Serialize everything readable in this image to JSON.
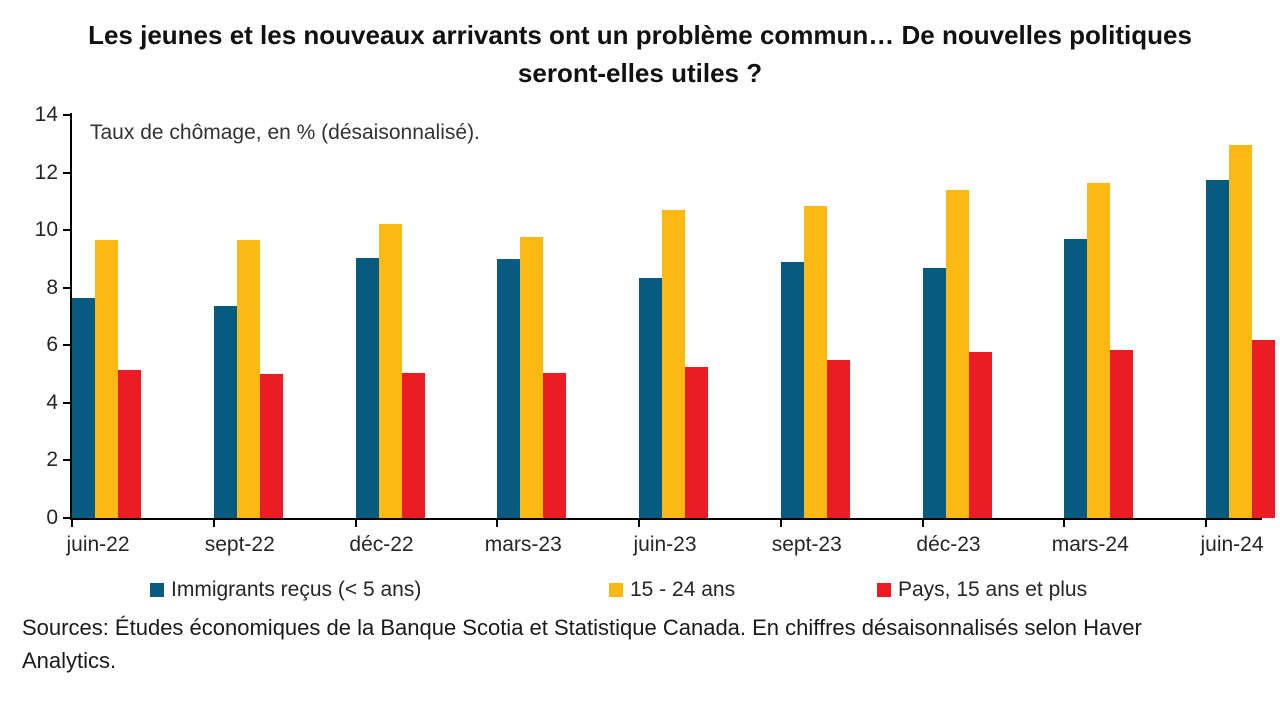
{
  "title": "Les jeunes et les nouveaux arrivants ont un problème commun… De nouvelles politiques seront-elles utiles ?",
  "annotation": "Taux de chômage, en % (désaisonnalisé).",
  "source_note": "Sources: Études économiques de la Banque Scotia et Statistique Canada. En chiffres désaisonnalisés selon Haver Analytics.",
  "colors": {
    "immigrants": "#075A80",
    "youth": "#FCB813",
    "country": "#EC1C24",
    "axis": "#000000"
  },
  "chart_data": {
    "type": "bar",
    "title": "Les jeunes et les nouveaux arrivants ont un problème commun… De nouvelles politiques seront-elles utiles ?",
    "subtitle": "Taux de chômage, en % (désaisonnalisé).",
    "categories": [
      "juin-22",
      "sept-22",
      "déc-22",
      "mars-23",
      "juin-23",
      "sept-23",
      "déc-23",
      "mars-24",
      "juin-24"
    ],
    "series": [
      {
        "key": "immigrants",
        "name": "Immigrants reçus (< 5 ans)",
        "color": "#075A80",
        "values": [
          7.65,
          7.35,
          9.05,
          9.0,
          8.35,
          8.9,
          8.7,
          9.7,
          11.75
        ]
      },
      {
        "key": "youth",
        "name": "15 - 24 ans",
        "color": "#FCB813",
        "values": [
          9.65,
          9.65,
          10.2,
          9.75,
          10.7,
          10.85,
          11.4,
          11.65,
          12.95
        ]
      },
      {
        "key": "country",
        "name": "Pays, 15 ans et plus",
        "color": "#EC1C24",
        "values": [
          5.15,
          5.0,
          5.05,
          5.05,
          5.25,
          5.5,
          5.75,
          5.85,
          6.2
        ]
      }
    ],
    "xlabel": "",
    "ylabel": "",
    "ylim": [
      0,
      14
    ],
    "yticks": [
      0,
      2,
      4,
      6,
      8,
      10,
      12,
      14
    ],
    "grid": false,
    "legend_position": "bottom"
  }
}
